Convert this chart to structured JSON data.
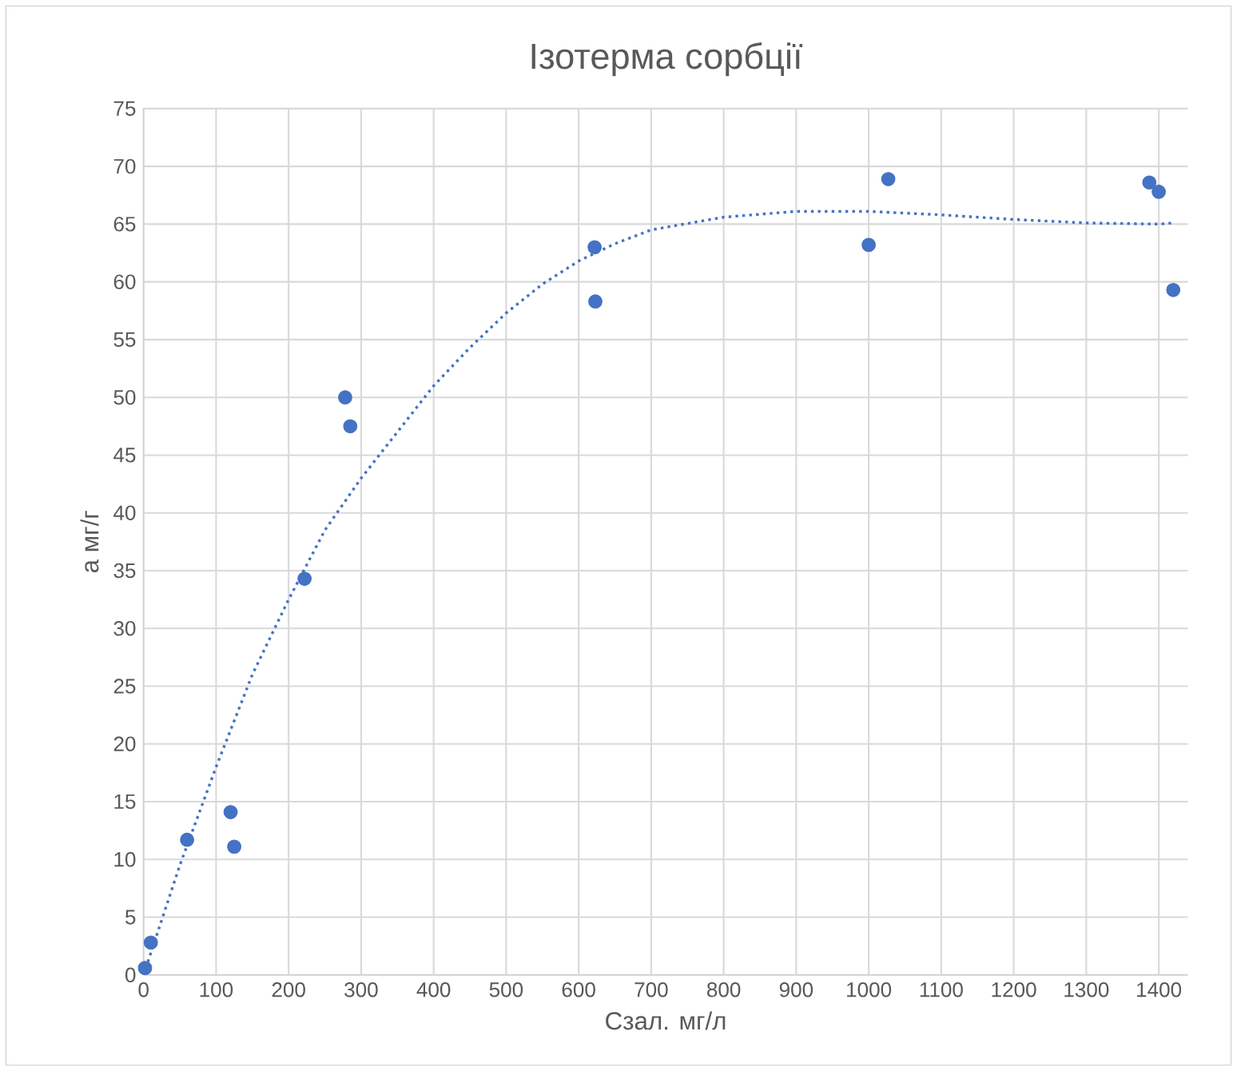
{
  "chart_data": {
    "type": "scatter",
    "title": "Ізотерма сорбції",
    "xlabel": "Сзал. мг/л",
    "ylabel": "а мг/г",
    "xlim": [
      0,
      1440
    ],
    "ylim": [
      0,
      75
    ],
    "xticks": [
      0,
      100,
      200,
      300,
      400,
      500,
      600,
      700,
      800,
      900,
      1000,
      1100,
      1200,
      1300,
      1400
    ],
    "yticks": [
      0,
      5,
      10,
      15,
      20,
      25,
      30,
      35,
      40,
      45,
      50,
      55,
      60,
      65,
      70,
      75
    ],
    "grid": true,
    "series": [
      {
        "color": "#4472c4",
        "marker": "circle",
        "x": [
          2,
          10,
          60,
          120,
          125,
          222,
          278,
          285,
          622,
          623,
          1000,
          1027,
          1387,
          1400,
          1420
        ],
        "values": [
          0.6,
          2.8,
          11.7,
          14.1,
          11.1,
          34.3,
          50,
          47.5,
          63,
          58.3,
          63.2,
          68.9,
          68.6,
          67.8,
          59.3
        ]
      },
      {
        "type": "line",
        "color": "#4472c4",
        "marker": "none",
        "line_style": "dotted",
        "x": [
          0,
          50,
          100,
          150,
          200,
          250,
          300,
          350,
          400,
          450,
          500,
          550,
          600,
          650,
          700,
          800,
          900,
          1000,
          1100,
          1200,
          1300,
          1400,
          1420
        ],
        "values": [
          0,
          9.5,
          18,
          26,
          32.5,
          38.5,
          43,
          47,
          51,
          54.3,
          57.3,
          59.8,
          61.8,
          63.3,
          64.5,
          65.6,
          66.1,
          66.1,
          65.8,
          65.4,
          65.1,
          65,
          65.1
        ]
      }
    ]
  }
}
